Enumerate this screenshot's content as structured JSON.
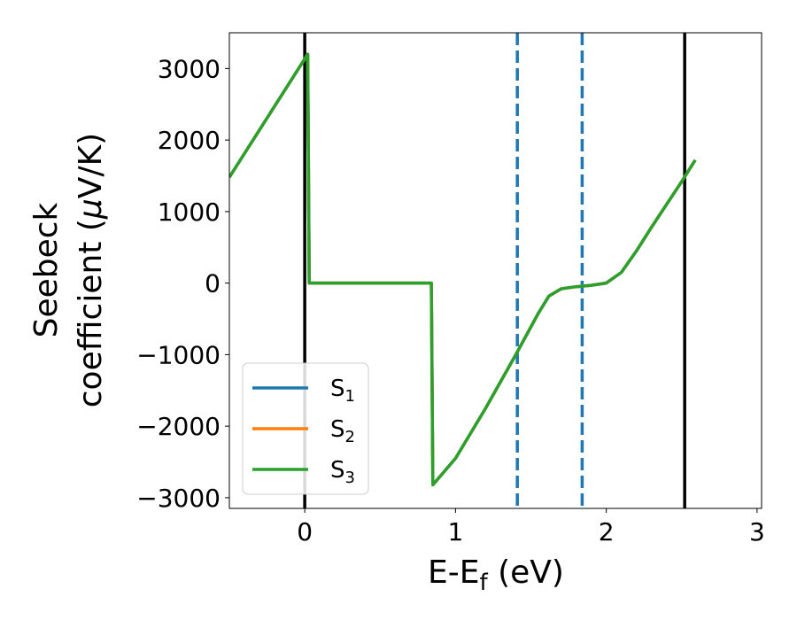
{
  "chart_data": {
    "type": "line",
    "xlabel": "E-E",
    "xlabel_sub": "f",
    "xlabel_unit": " (eV)",
    "ylabel_line1": "Seebeck",
    "ylabel_line2": "coefficient  (",
    "ylabel_mu": "μ",
    "ylabel_unit": "V/K)",
    "xlim": [
      -0.5,
      3.03
    ],
    "ylim": [
      -3150,
      3500
    ],
    "xticks": [
      0,
      1,
      2,
      3
    ],
    "yticks": [
      -3000,
      -2000,
      -1000,
      0,
      1000,
      2000,
      3000
    ],
    "xtick_labels": [
      "0",
      "1",
      "2",
      "3"
    ],
    "ytick_labels": [
      "−3000",
      "−2000",
      "−1000",
      "0",
      "1000",
      "2000",
      "3000"
    ],
    "grid": false,
    "legend_position": "lower-left",
    "vlines": [
      {
        "x": 0.0,
        "style": "solid",
        "color": "#000000"
      },
      {
        "x": 2.52,
        "style": "solid",
        "color": "#000000"
      },
      {
        "x": 1.41,
        "style": "dashed",
        "color": "#1f77b4"
      },
      {
        "x": 1.84,
        "style": "dashed",
        "color": "#1f77b4"
      }
    ],
    "series": [
      {
        "name": "S",
        "sub": "1",
        "color": "#1f77b4",
        "x": [
          -0.5,
          0.02,
          0.03,
          0.84,
          0.85,
          1.0,
          1.2,
          1.4,
          1.55,
          1.62,
          1.7,
          1.8,
          1.9,
          2.0,
          2.1,
          2.2,
          2.3,
          2.4,
          2.5,
          2.59
        ],
        "y": [
          1480,
          3200,
          0,
          0,
          -2820,
          -2450,
          -1750,
          -1000,
          -420,
          -180,
          -80,
          -50,
          -30,
          0,
          150,
          450,
          780,
          1100,
          1420,
          1720
        ]
      },
      {
        "name": "S",
        "sub": "2",
        "color": "#ff7f0e",
        "x": [
          -0.5,
          0.02,
          0.03,
          0.84,
          0.85,
          1.0,
          1.2,
          1.4,
          1.55,
          1.62,
          1.7,
          1.8,
          1.9,
          2.0,
          2.1,
          2.2,
          2.3,
          2.4,
          2.5,
          2.59
        ],
        "y": [
          1480,
          3200,
          0,
          0,
          -2820,
          -2450,
          -1750,
          -1000,
          -420,
          -180,
          -80,
          -50,
          -30,
          0,
          150,
          450,
          780,
          1100,
          1420,
          1720
        ]
      },
      {
        "name": "S",
        "sub": "3",
        "color": "#2ca02c",
        "x": [
          -0.5,
          0.02,
          0.03,
          0.84,
          0.85,
          1.0,
          1.2,
          1.4,
          1.55,
          1.62,
          1.7,
          1.8,
          1.9,
          2.0,
          2.1,
          2.2,
          2.3,
          2.4,
          2.5,
          2.59
        ],
        "y": [
          1480,
          3200,
          0,
          0,
          -2820,
          -2450,
          -1750,
          -1000,
          -420,
          -180,
          -80,
          -50,
          -30,
          0,
          150,
          450,
          780,
          1100,
          1420,
          1720
        ]
      }
    ]
  }
}
